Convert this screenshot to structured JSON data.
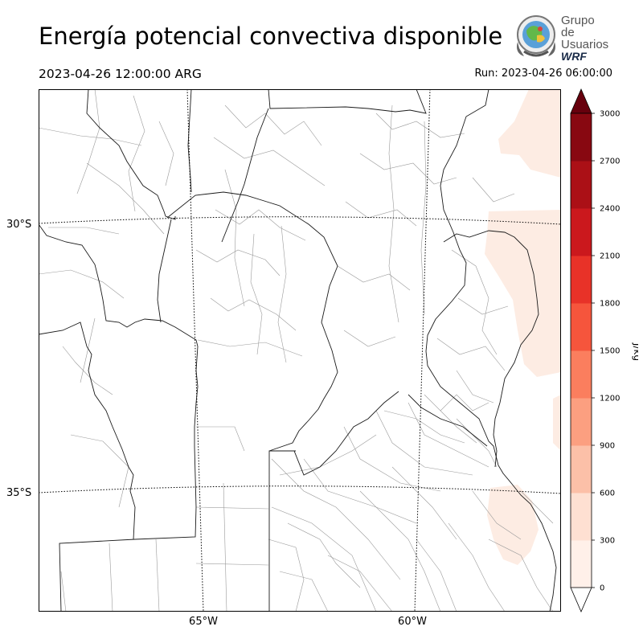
{
  "title": "Energía potencial convectiva disponible",
  "valid_time": "2023-04-26 12:00:00 ARG",
  "run_time": "Run: 2023-04-26 06:00:00",
  "logo": {
    "line1": "Grupo de",
    "line2": "Usuarios",
    "line3": "WRF"
  },
  "map": {
    "lat_labels": [
      "30°S",
      "35°S"
    ],
    "lon_labels": [
      "65°W",
      "60°W"
    ]
  },
  "colorbar": {
    "label": "J/kg",
    "ticks": [
      "0",
      "300",
      "600",
      "900",
      "1200",
      "1500",
      "1800",
      "2100",
      "2400",
      "2700",
      "3000"
    ],
    "colors": [
      "#fff0e9",
      "#fee0d2",
      "#fcc0a8",
      "#fc9f80",
      "#fb7e5e",
      "#f6553c",
      "#e83228",
      "#cb181d",
      "#ab1016",
      "#880811",
      "#67000d"
    ],
    "extend": "both"
  }
}
